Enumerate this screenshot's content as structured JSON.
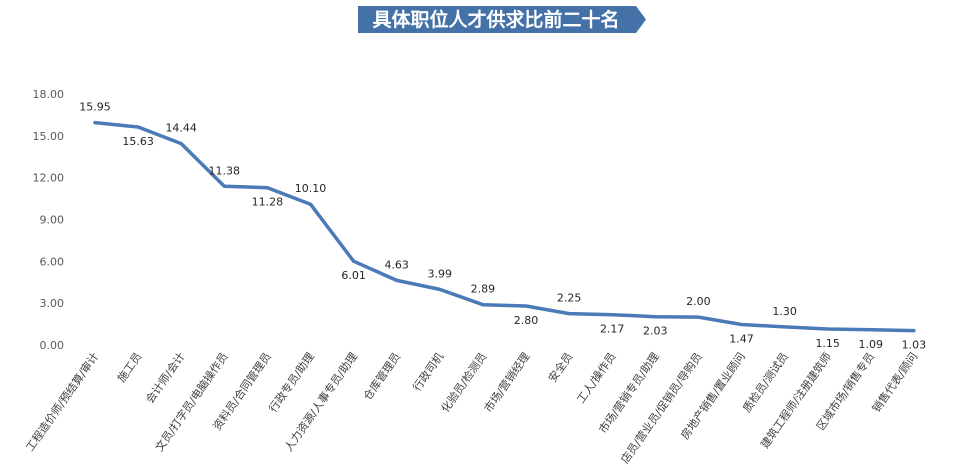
{
  "chart_data": {
    "type": "line",
    "title": "具体职位人才供求比前二十名",
    "categories": [
      "工程造价师/预结算/审计",
      "施工员",
      "会计师/会计",
      "文员/打字员/电脑操作员",
      "资料员/合同管理员",
      "行政专员/助理",
      "人力资源/人事专员/助理",
      "仓库管理员",
      "行政司机",
      "化验员/检测员",
      "市场/营销经理",
      "安全员",
      "工人/操作员",
      "市场/营销专员/助理",
      "店员/营业员/促销员/导购员",
      "房地产销售/置业顾问",
      "质检员/测试员",
      "建筑工程师/注册建筑师",
      "区域市场/销售专员",
      "销售代表/顾问"
    ],
    "series": [
      {
        "values": [
          15.95,
          15.63,
          14.44,
          11.38,
          11.28,
          10.1,
          6.01,
          4.63,
          3.99,
          2.89,
          2.8,
          2.25,
          2.17,
          2.03,
          2.0,
          1.47,
          1.3,
          1.15,
          1.09,
          1.03
        ],
        "data_labels": [
          "15.95",
          "15.63",
          "14.44",
          "11.38",
          "11.28",
          "10.10",
          "6.01",
          "4.63",
          "3.99",
          "2.89",
          "2.80",
          "2.25",
          "2.17",
          "2.03",
          "2.00",
          "1.47",
          "1.30",
          "1.15",
          "1.09",
          "1.03"
        ]
      }
    ],
    "ylim": [
      0,
      18
    ],
    "yticks": [
      "0.00",
      "3.00",
      "6.00",
      "9.00",
      "12.00",
      "15.00",
      "18.00"
    ],
    "grid": false,
    "legend": "none",
    "colors": {
      "line": "#4a7ab8",
      "title_bg": "#4472a8",
      "title_text": "#ffffff",
      "axis_text": "#595959"
    }
  }
}
